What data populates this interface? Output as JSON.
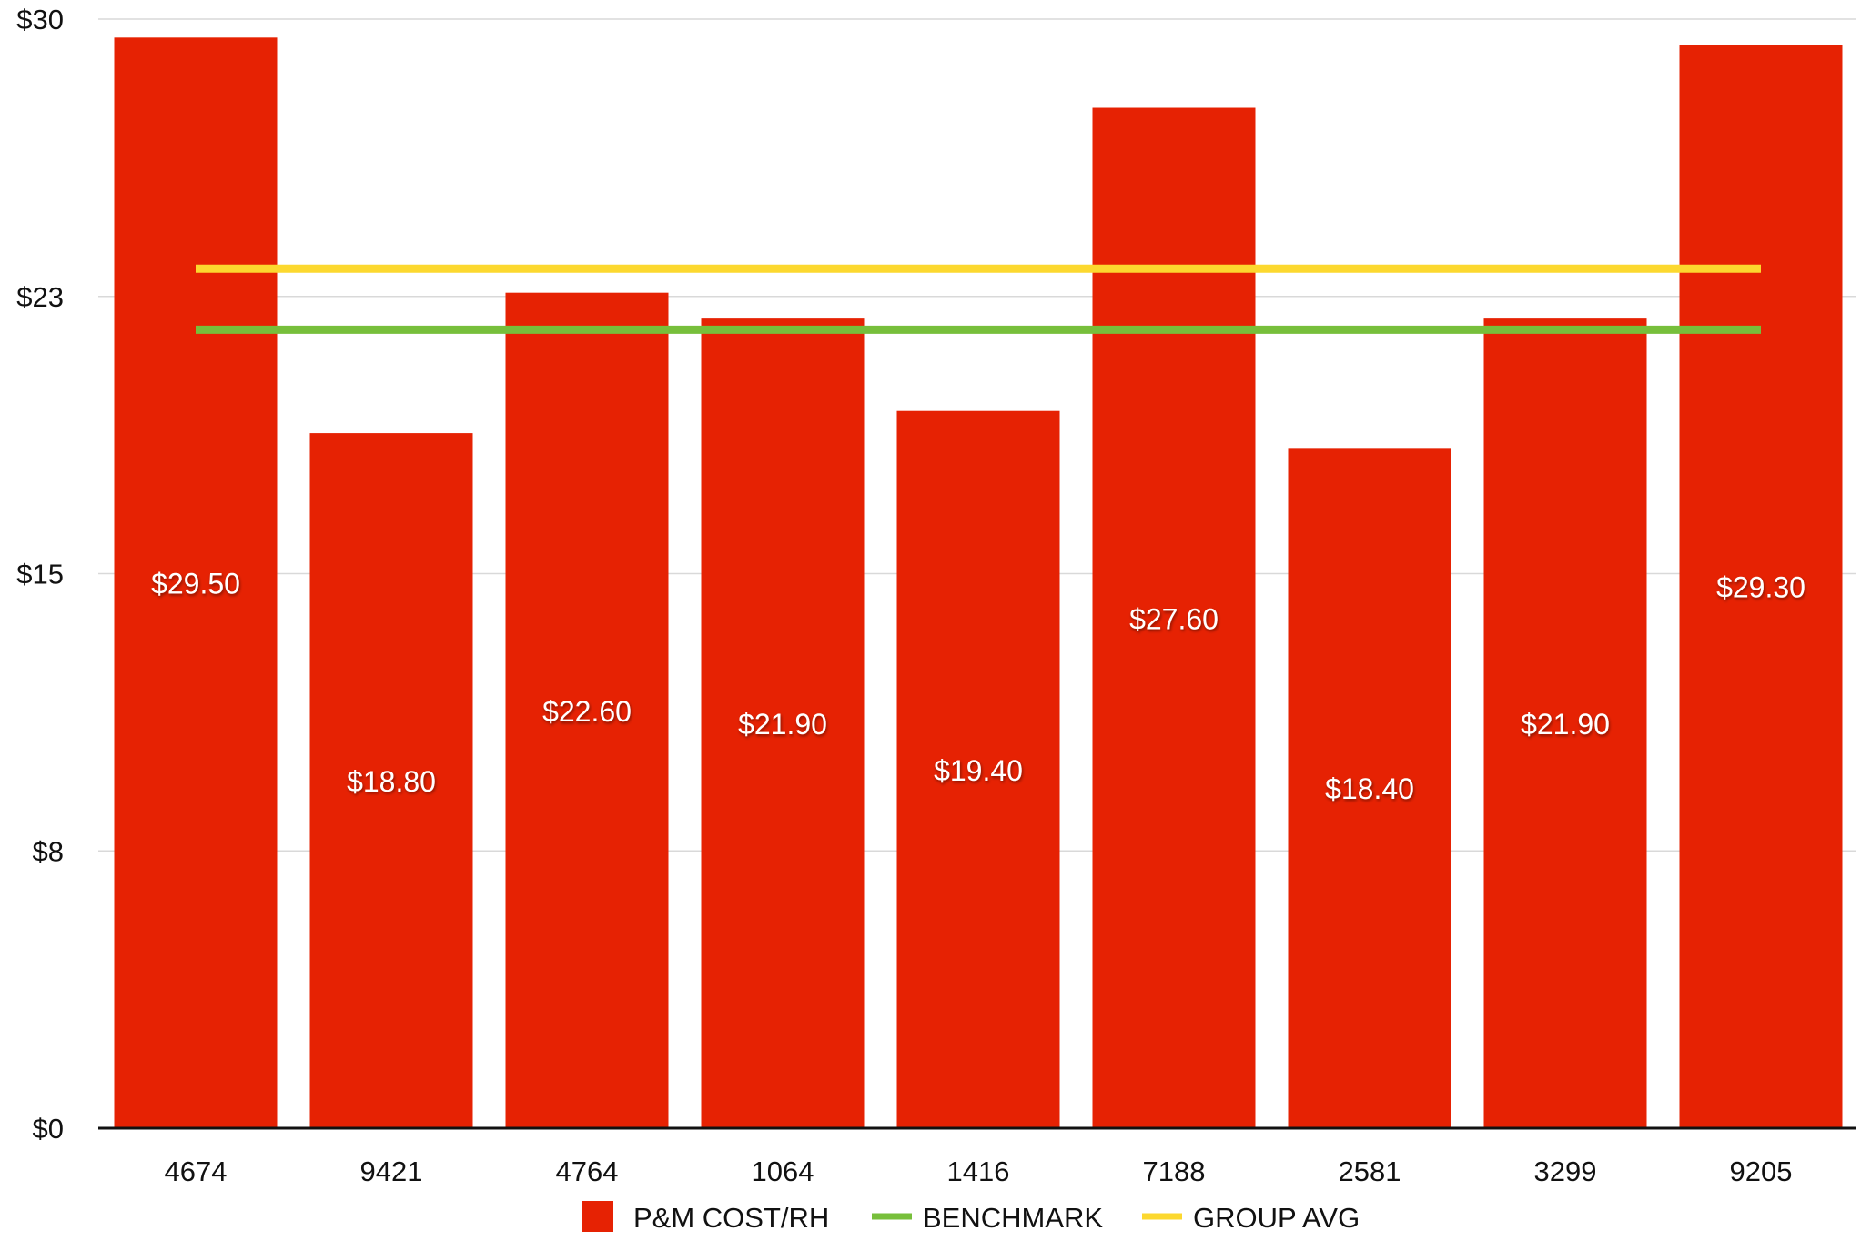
{
  "chart_data": {
    "type": "bar",
    "title": "",
    "xlabel": "",
    "ylabel": "",
    "categories": [
      "4674",
      "9421",
      "4764",
      "1064",
      "1416",
      "7188",
      "2581",
      "3299",
      "9205"
    ],
    "series": [
      {
        "name": "P&M COST/RH",
        "type": "bar",
        "values": [
          29.5,
          18.8,
          22.6,
          21.9,
          19.4,
          27.6,
          18.4,
          21.9,
          29.3
        ],
        "labels": [
          "$29.50",
          "$18.80",
          "$22.60",
          "$21.90",
          "$19.40",
          "$27.60",
          "$18.40",
          "$21.90",
          "$29.30"
        ],
        "color": "#E62203"
      },
      {
        "name": "BENCHMARK",
        "type": "line",
        "value": 21.6,
        "color": "#77BF3B"
      },
      {
        "name": "GROUP AVG",
        "type": "line",
        "value": 23.25,
        "color": "#FCD82F"
      }
    ],
    "ylim": [
      0,
      30
    ],
    "yticks": [
      0,
      7.5,
      15,
      22.5,
      30
    ],
    "ytick_labels": [
      "$0",
      "$8",
      "$15",
      "$23",
      "$30"
    ],
    "grid": true,
    "legend_position": "bottom-center",
    "colors": {
      "grid": "#D9D9D9",
      "axis": "#111111",
      "tick_text": "#111111",
      "bar_label_text": "#FFFFFF"
    }
  }
}
